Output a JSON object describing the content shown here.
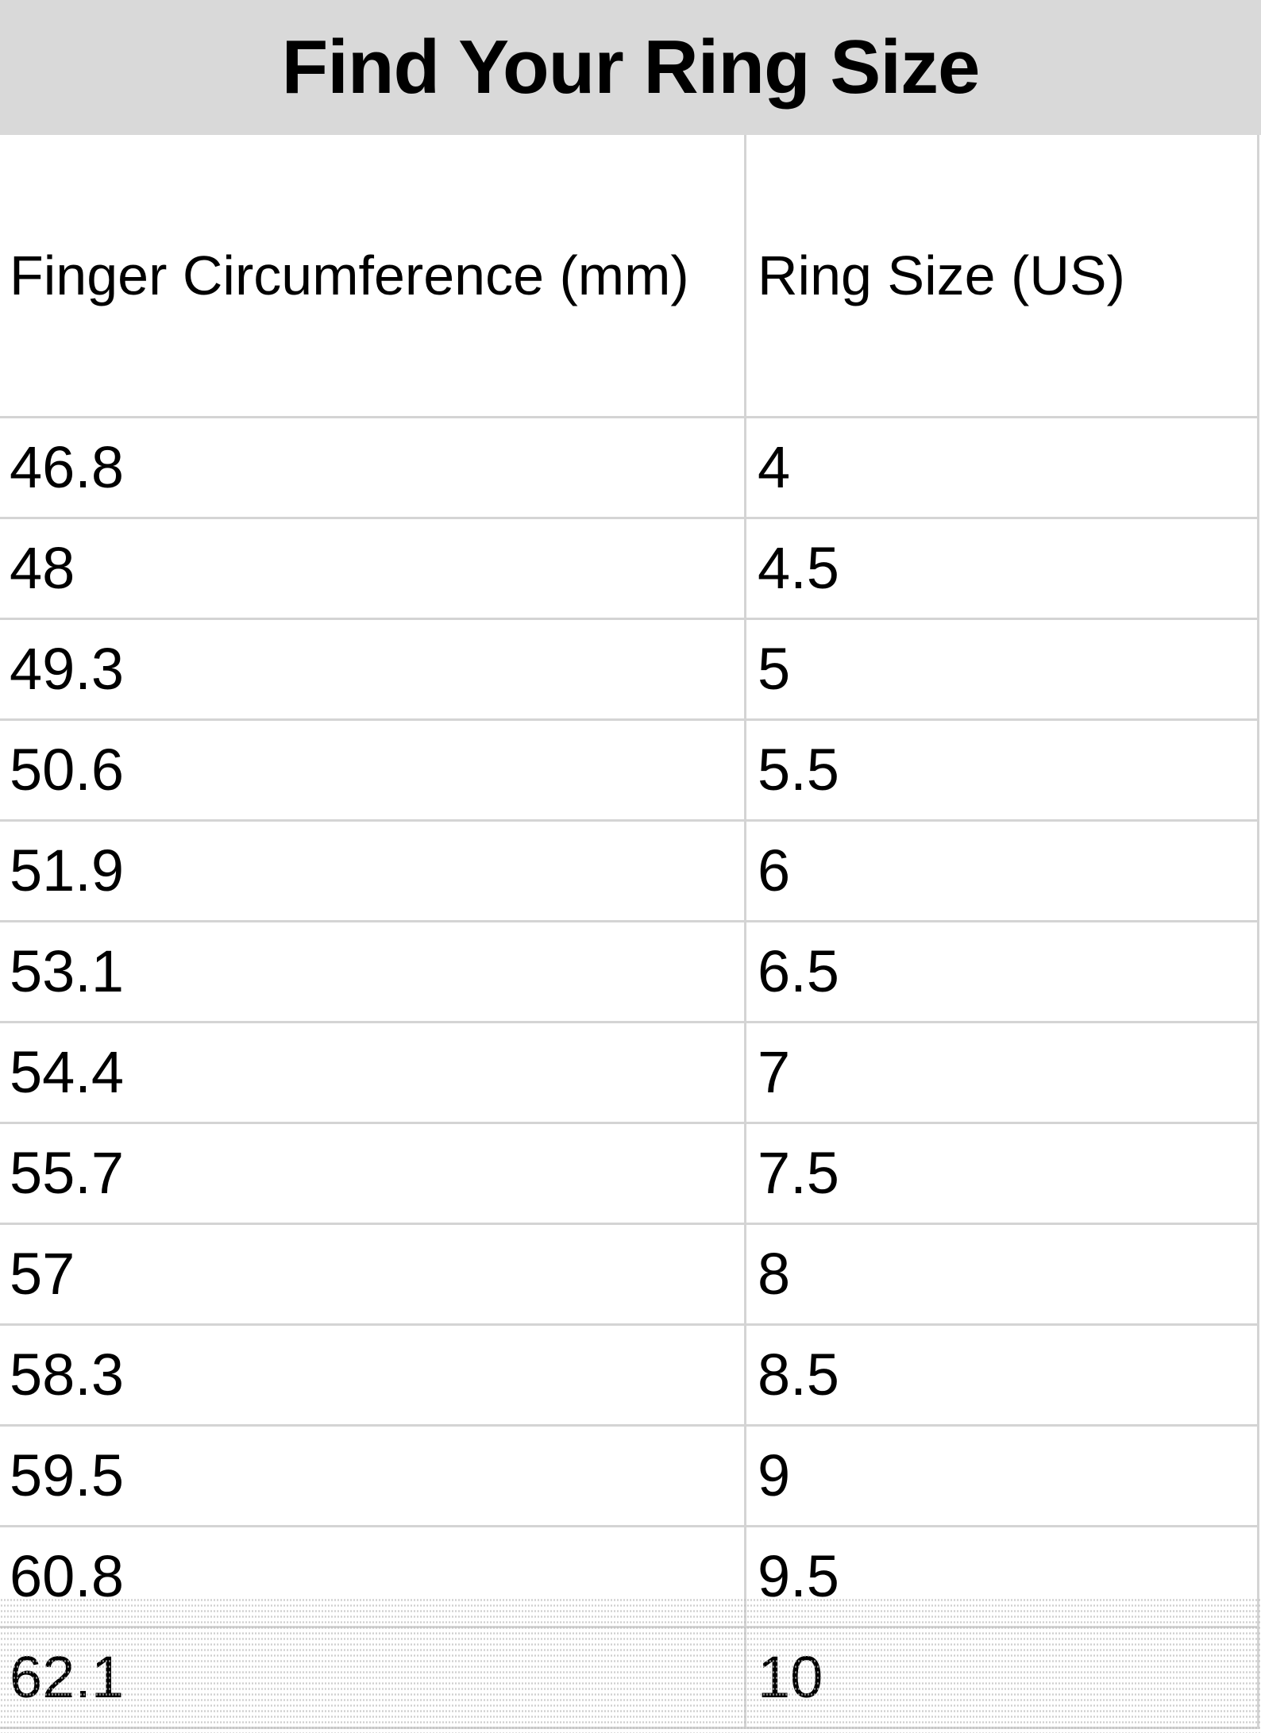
{
  "title": "Find Your Ring Size",
  "columns": [
    "Finger Circumference (mm)",
    "Ring Size (US)"
  ],
  "rows": [
    [
      "46.8",
      "4"
    ],
    [
      "48",
      "4.5"
    ],
    [
      "49.3",
      "5"
    ],
    [
      "50.6",
      "5.5"
    ],
    [
      "51.9",
      "6"
    ],
    [
      "53.1",
      "6.5"
    ],
    [
      "54.4",
      "7"
    ],
    [
      "55.7",
      "7.5"
    ],
    [
      "57",
      "8"
    ],
    [
      "58.3",
      "8.5"
    ],
    [
      "59.5",
      "9"
    ],
    [
      "60.8",
      "9.5"
    ],
    [
      "62.1",
      "10"
    ]
  ],
  "colors": {
    "title_band": "#d9d9d9",
    "gridline": "#d4d4d4"
  }
}
